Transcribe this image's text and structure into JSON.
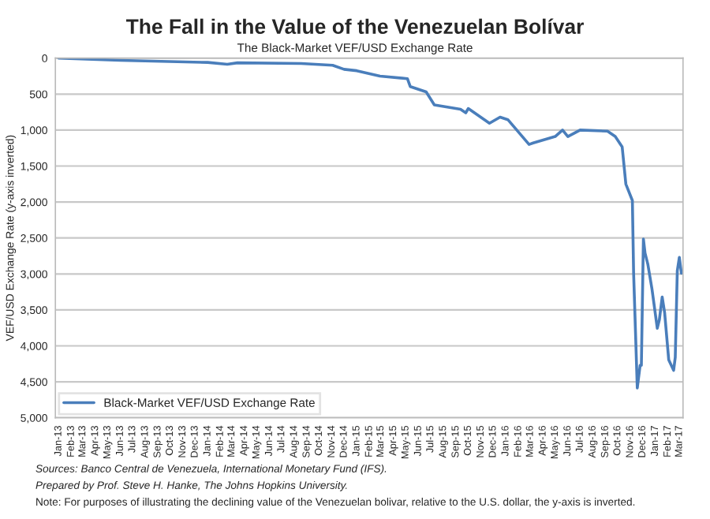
{
  "chart_data": {
    "type": "line",
    "title": "The Fall in the Value of the Venezuelan Bolívar",
    "subtitle": "The Black-Market VEF/USD Exchange Rate",
    "ylabel": "VEF/USD Exchange Rate (y-axis inverted)",
    "x": [
      "2013-01-01",
      "2013-06-01",
      "2014-01-01",
      "2014-02-18",
      "2014-03-15",
      "2014-08-18",
      "2014-11-03",
      "2014-12-01",
      "2015-01-01",
      "2015-02-27",
      "2015-05-05",
      "2015-05-12",
      "2015-06-20",
      "2015-07-10",
      "2015-09-12",
      "2015-09-25",
      "2015-10-01",
      "2015-11-22",
      "2015-12-18",
      "2016-01-06",
      "2016-02-27",
      "2016-03-08",
      "2016-05-01",
      "2016-05-19",
      "2016-06-01",
      "2016-07-01",
      "2016-09-06",
      "2016-09-25",
      "2016-10-12",
      "2016-10-21",
      "2016-11-06",
      "2016-11-09",
      "2016-11-18",
      "2016-11-25",
      "2016-11-28",
      "2016-12-03",
      "2016-12-07",
      "2016-12-14",
      "2016-12-24",
      "2017-01-06",
      "2017-01-11",
      "2017-01-18",
      "2017-01-24",
      "2017-02-03",
      "2017-02-15",
      "2017-02-19",
      "2017-02-24",
      "2017-03-01",
      "2017-03-06"
    ],
    "series": [
      {
        "name": "Black-Market VEF/USD Exchange Rate",
        "color": "#4a7ebb",
        "values": [
          0,
          30,
          60,
          85,
          65,
          75,
          100,
          155,
          175,
          250,
          285,
          395,
          470,
          650,
          710,
          760,
          700,
          905,
          820,
          855,
          1200,
          1180,
          1090,
          1000,
          1090,
          1000,
          1015,
          1090,
          1235,
          1750,
          1980,
          2985,
          4585,
          4270,
          4270,
          2515,
          2710,
          2870,
          3210,
          3755,
          3640,
          3320,
          3540,
          4195,
          4340,
          4160,
          2955,
          2770,
          2990
        ]
      }
    ],
    "xlim": [
      "2012-12-24",
      "2017-03-10"
    ],
    "xticks": [
      {
        "value": "2013-01-01",
        "label": "Jan-13"
      },
      {
        "value": "2013-02-01",
        "label": "Feb-13"
      },
      {
        "value": "2013-03-01",
        "label": "Mar-13"
      },
      {
        "value": "2013-04-01",
        "label": "Apr-13"
      },
      {
        "value": "2013-05-01",
        "label": "May-13"
      },
      {
        "value": "2013-06-01",
        "label": "Jun-13"
      },
      {
        "value": "2013-07-01",
        "label": "Jul-13"
      },
      {
        "value": "2013-08-01",
        "label": "Aug-13"
      },
      {
        "value": "2013-09-01",
        "label": "Sep-13"
      },
      {
        "value": "2013-10-01",
        "label": "Oct-13"
      },
      {
        "value": "2013-11-01",
        "label": "Nov-13"
      },
      {
        "value": "2013-12-01",
        "label": "Dec-13"
      },
      {
        "value": "2014-01-01",
        "label": "Jan-14"
      },
      {
        "value": "2014-02-01",
        "label": "Feb-14"
      },
      {
        "value": "2014-03-01",
        "label": "Mar-14"
      },
      {
        "value": "2014-04-01",
        "label": "Apr-14"
      },
      {
        "value": "2014-05-01",
        "label": "May-14"
      },
      {
        "value": "2014-06-01",
        "label": "Jun-14"
      },
      {
        "value": "2014-07-01",
        "label": "Jul-14"
      },
      {
        "value": "2014-08-01",
        "label": "Aug-14"
      },
      {
        "value": "2014-09-01",
        "label": "Sep-14"
      },
      {
        "value": "2014-10-01",
        "label": "Oct-14"
      },
      {
        "value": "2014-11-01",
        "label": "Nov-14"
      },
      {
        "value": "2014-12-01",
        "label": "Dec-14"
      },
      {
        "value": "2015-01-01",
        "label": "Jan-15"
      },
      {
        "value": "2015-02-01",
        "label": "Feb-15"
      },
      {
        "value": "2015-03-01",
        "label": "Mar-15"
      },
      {
        "value": "2015-04-01",
        "label": "Apr-15"
      },
      {
        "value": "2015-05-01",
        "label": "May-15"
      },
      {
        "value": "2015-06-01",
        "label": "Jun-15"
      },
      {
        "value": "2015-07-01",
        "label": "Jul-15"
      },
      {
        "value": "2015-08-01",
        "label": "Aug-15"
      },
      {
        "value": "2015-09-01",
        "label": "Sep-15"
      },
      {
        "value": "2015-10-01",
        "label": "Oct-15"
      },
      {
        "value": "2015-11-01",
        "label": "Nov-15"
      },
      {
        "value": "2015-12-01",
        "label": "Dec-15"
      },
      {
        "value": "2016-01-01",
        "label": "Jan-16"
      },
      {
        "value": "2016-02-01",
        "label": "Feb-16"
      },
      {
        "value": "2016-03-01",
        "label": "Mar-16"
      },
      {
        "value": "2016-04-01",
        "label": "Apr-16"
      },
      {
        "value": "2016-05-01",
        "label": "May-16"
      },
      {
        "value": "2016-06-01",
        "label": "Jun-16"
      },
      {
        "value": "2016-07-01",
        "label": "Jul-16"
      },
      {
        "value": "2016-08-01",
        "label": "Aug-16"
      },
      {
        "value": "2016-09-01",
        "label": "Sep-16"
      },
      {
        "value": "2016-10-01",
        "label": "Oct-16"
      },
      {
        "value": "2016-11-01",
        "label": "Nov-16"
      },
      {
        "value": "2016-12-01",
        "label": "Dec-16"
      },
      {
        "value": "2017-01-01",
        "label": "Jan-17"
      },
      {
        "value": "2017-02-01",
        "label": "Feb-17"
      },
      {
        "value": "2017-03-01",
        "label": "Mar-17"
      }
    ],
    "ylim": [
      5000,
      0
    ],
    "yticks": [
      0,
      {
        "value": 500,
        "label": "500"
      },
      {
        "value": 1000,
        "label": "1,000"
      },
      {
        "value": 1500,
        "label": "1,500"
      },
      {
        "value": 2000,
        "label": "2,000"
      },
      {
        "value": 2500,
        "label": "2,500"
      },
      {
        "value": 3000,
        "label": "3,000"
      },
      {
        "value": 3500,
        "label": "3,500"
      },
      {
        "value": 4000,
        "label": "4,000"
      },
      {
        "value": 4500,
        "label": "4,500"
      },
      {
        "value": 5000,
        "label": "5,000"
      }
    ],
    "grid": "y",
    "legend": "bottom left",
    "marker": "none",
    "line_style": "solid",
    "annotations": [
      "Sources: Banco Central de Venezuela, International Monetary Fund (IFS).",
      "Prepared by Prof. Steve H. Hanke, The Johns Hopkins University.",
      "Note: For purposes of illustrating the declining value of the Venezuelan bolivar, relative to the U.S. dollar, the y-axis is inverted."
    ]
  }
}
